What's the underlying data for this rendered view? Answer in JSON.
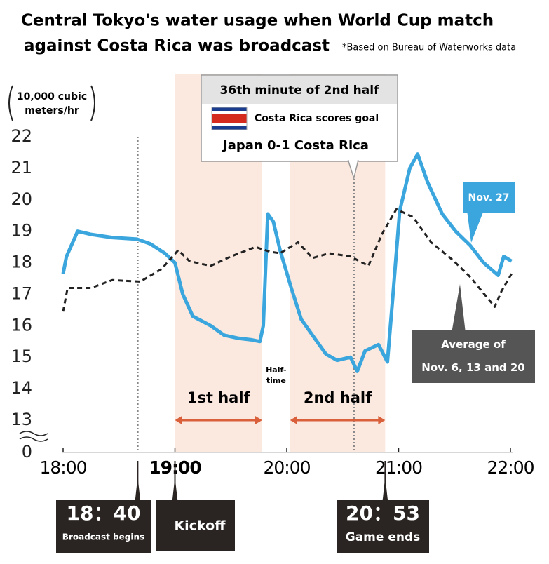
{
  "chart_data": {
    "type": "line",
    "title": [
      "Central Tokyo's water usage when World Cup match",
      "against Costa Rica was broadcast"
    ],
    "source_note": "*Based on Bureau of Waterworks data",
    "y_axis_label": [
      "10,000 cubic",
      "meters/hr"
    ],
    "xlim": [
      18,
      22
    ],
    "xticks": [
      {
        "value": 18,
        "label": "18:00"
      },
      {
        "value": 19,
        "label": "19:00"
      },
      {
        "value": 20,
        "label": "20:00"
      },
      {
        "value": 21,
        "label": "21:00"
      },
      {
        "value": 22,
        "label": "22:00"
      }
    ],
    "ylim": [
      0,
      22
    ],
    "axis_break": [
      0,
      13
    ],
    "yticks": [
      0,
      13,
      14,
      15,
      16,
      17,
      18,
      19,
      20,
      21,
      22
    ],
    "series": [
      {
        "name": "Nov. 27",
        "color": "#3aa6dd",
        "style": "solid",
        "x": [
          18.0,
          18.03,
          18.13,
          18.25,
          18.44,
          18.66,
          18.78,
          18.91,
          19.0,
          19.07,
          19.16,
          19.32,
          19.44,
          19.57,
          19.69,
          19.76,
          19.79,
          19.83,
          19.88,
          19.94,
          20.04,
          20.13,
          20.26,
          20.35,
          20.45,
          20.57,
          20.63,
          20.7,
          20.82,
          20.9,
          20.95,
          21.01,
          21.1,
          21.17,
          21.26,
          21.39,
          21.51,
          21.64,
          21.76,
          21.89,
          21.94,
          22.01
        ],
        "values": [
          17.65,
          18.2,
          19.0,
          18.9,
          18.8,
          18.75,
          18.6,
          18.3,
          18.0,
          17.0,
          16.3,
          16.0,
          15.7,
          15.6,
          15.55,
          15.5,
          16.0,
          19.55,
          19.3,
          18.4,
          17.2,
          16.2,
          15.55,
          15.1,
          14.9,
          15.0,
          14.55,
          15.2,
          15.4,
          14.85,
          17.0,
          19.65,
          21.0,
          21.45,
          20.55,
          19.55,
          19.0,
          18.55,
          18.0,
          17.6,
          18.2,
          18.05
        ]
      },
      {
        "name": "Average of Nov. 6, 13 and 20",
        "color": "#222222",
        "style": "dashed",
        "x": [
          18.0,
          18.04,
          18.25,
          18.44,
          18.69,
          18.88,
          19.03,
          19.13,
          19.32,
          19.5,
          19.72,
          19.85,
          19.94,
          20.1,
          20.23,
          20.38,
          20.57,
          20.73,
          20.85,
          20.98,
          21.13,
          21.29,
          21.48,
          21.64,
          21.86,
          21.92,
          22.01
        ],
        "values": [
          16.45,
          17.2,
          17.2,
          17.45,
          17.4,
          17.8,
          18.4,
          18.05,
          17.9,
          18.2,
          18.5,
          18.35,
          18.3,
          18.65,
          18.15,
          18.3,
          18.2,
          17.9,
          18.9,
          19.7,
          19.45,
          18.65,
          18.1,
          17.55,
          16.6,
          17.1,
          17.65
        ]
      }
    ],
    "periods": [
      {
        "label": "1st half",
        "start": 19.0,
        "end": 19.78
      },
      {
        "label": "2nd half",
        "start": 20.03,
        "end": 20.88
      }
    ],
    "halftime_label": [
      "Half-",
      "time"
    ],
    "goal": {
      "x": 20.6,
      "heading": "36th minute of 2nd half",
      "event": "Costa Rica scores goal",
      "score": "Japan 0-1 Costa Rica"
    },
    "markers": [
      {
        "x": 18.667,
        "time": "18：40",
        "label": "Broadcast begins"
      },
      {
        "x": 19.0,
        "label": "Kickoff"
      },
      {
        "x": 20.88,
        "time": "20：53",
        "label": "Game ends"
      }
    ]
  }
}
